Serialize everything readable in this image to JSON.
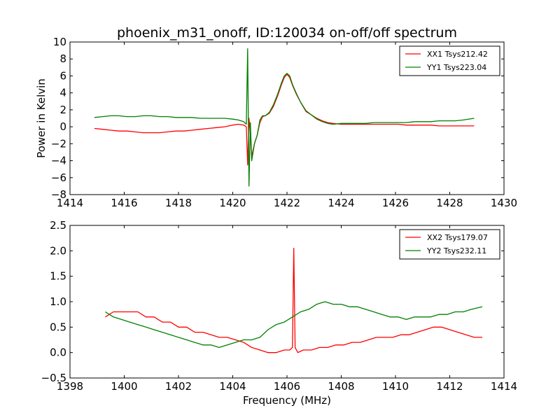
{
  "figure": {
    "title": "phoenix_m31_onoff, ID:120034 on-off/off spectrum",
    "xlabel": "Frequency (MHz)",
    "ylabel": "Power in Kelvin"
  },
  "chart_data": [
    {
      "type": "line",
      "title": "phoenix_m31_onoff, ID:120034 on-off/off spectrum",
      "xlabel": "",
      "ylabel": "Power in Kelvin",
      "xlim": [
        1414,
        1430
      ],
      "ylim": [
        -8,
        10
      ],
      "xticks": [
        1414,
        1416,
        1418,
        1420,
        1422,
        1424,
        1426,
        1428,
        1430
      ],
      "yticks": [
        -8,
        -6,
        -4,
        -2,
        0,
        2,
        4,
        6,
        8,
        10
      ],
      "xtick_labels": [
        "1414",
        "1416",
        "1418",
        "1420",
        "1422",
        "1424",
        "1426",
        "1428",
        "1430"
      ],
      "ytick_labels": [
        "−8",
        "−6",
        "−4",
        "−2",
        "0",
        "2",
        "4",
        "6",
        "8",
        "10"
      ],
      "legend": "top-right",
      "series": [
        {
          "name": "XX1 Tsys212.42",
          "color": "#ff0000",
          "x": [
            1414.9,
            1415.2,
            1415.5,
            1415.8,
            1416.1,
            1416.4,
            1416.7,
            1417.0,
            1417.3,
            1417.6,
            1417.9,
            1418.2,
            1418.5,
            1418.8,
            1419.1,
            1419.4,
            1419.7,
            1420.0,
            1420.2,
            1420.4,
            1420.5,
            1420.55,
            1420.6,
            1420.65,
            1420.7,
            1420.8,
            1420.9,
            1421.0,
            1421.1,
            1421.2,
            1421.35,
            1421.5,
            1421.65,
            1421.8,
            1421.9,
            1422.0,
            1422.1,
            1422.2,
            1422.35,
            1422.5,
            1422.7,
            1422.9,
            1423.1,
            1423.3,
            1423.5,
            1423.7,
            1424.0,
            1424.3,
            1424.6,
            1424.9,
            1425.2,
            1425.5,
            1425.8,
            1426.1,
            1426.4,
            1426.7,
            1427.0,
            1427.3,
            1427.6,
            1427.9,
            1428.2,
            1428.5,
            1428.9
          ],
          "y": [
            -0.2,
            -0.3,
            -0.4,
            -0.5,
            -0.5,
            -0.6,
            -0.7,
            -0.7,
            -0.7,
            -0.6,
            -0.5,
            -0.5,
            -0.4,
            -0.3,
            -0.2,
            -0.1,
            0.0,
            0.2,
            0.3,
            0.2,
            0.0,
            -4.5,
            1.0,
            -1.0,
            -3.5,
            -2.0,
            -1.0,
            0.5,
            1.2,
            1.3,
            1.6,
            2.4,
            3.6,
            5.0,
            5.8,
            6.2,
            5.8,
            4.9,
            3.8,
            2.9,
            1.8,
            1.4,
            1.0,
            0.7,
            0.5,
            0.4,
            0.3,
            0.3,
            0.3,
            0.3,
            0.3,
            0.3,
            0.3,
            0.3,
            0.2,
            0.2,
            0.2,
            0.2,
            0.1,
            0.1,
            0.1,
            0.1,
            0.1
          ]
        },
        {
          "name": "YY1 Tsys223.04",
          "color": "#008000",
          "x": [
            1414.9,
            1415.2,
            1415.5,
            1415.8,
            1416.1,
            1416.4,
            1416.7,
            1417.0,
            1417.3,
            1417.6,
            1417.9,
            1418.2,
            1418.5,
            1418.8,
            1419.1,
            1419.4,
            1419.7,
            1420.0,
            1420.2,
            1420.4,
            1420.5,
            1420.55,
            1420.6,
            1420.65,
            1420.7,
            1420.8,
            1420.9,
            1421.0,
            1421.1,
            1421.2,
            1421.35,
            1421.5,
            1421.65,
            1421.8,
            1421.9,
            1422.0,
            1422.1,
            1422.2,
            1422.35,
            1422.5,
            1422.7,
            1422.9,
            1423.1,
            1423.3,
            1423.5,
            1423.7,
            1424.0,
            1424.3,
            1424.6,
            1424.9,
            1425.2,
            1425.5,
            1425.8,
            1426.1,
            1426.4,
            1426.7,
            1427.0,
            1427.3,
            1427.6,
            1427.9,
            1428.2,
            1428.5,
            1428.9
          ],
          "y": [
            1.1,
            1.2,
            1.3,
            1.3,
            1.2,
            1.2,
            1.3,
            1.3,
            1.2,
            1.2,
            1.1,
            1.1,
            1.1,
            1.0,
            1.0,
            1.0,
            1.0,
            0.9,
            0.8,
            0.6,
            0.3,
            9.2,
            -7.0,
            0.5,
            -4.0,
            -2.0,
            -1.0,
            0.8,
            1.3,
            1.3,
            1.7,
            2.6,
            3.8,
            5.2,
            6.0,
            6.3,
            6.0,
            5.0,
            3.9,
            2.9,
            1.9,
            1.4,
            0.9,
            0.6,
            0.4,
            0.3,
            0.4,
            0.4,
            0.4,
            0.4,
            0.5,
            0.5,
            0.5,
            0.5,
            0.5,
            0.6,
            0.6,
            0.6,
            0.7,
            0.7,
            0.7,
            0.8,
            1.0
          ]
        }
      ]
    },
    {
      "type": "line",
      "title": "",
      "xlabel": "Frequency (MHz)",
      "ylabel": "",
      "xlim": [
        1398,
        1414
      ],
      "ylim": [
        -0.5,
        2.5
      ],
      "xticks": [
        1398,
        1400,
        1402,
        1404,
        1406,
        1408,
        1410,
        1412,
        1414
      ],
      "yticks": [
        -0.5,
        0.0,
        0.5,
        1.0,
        1.5,
        2.0,
        2.5
      ],
      "xtick_labels": [
        "1398",
        "1400",
        "1402",
        "1404",
        "1406",
        "1408",
        "1410",
        "1412",
        "1414"
      ],
      "ytick_labels": [
        "−0.5",
        "0.0",
        "0.5",
        "1.0",
        "1.5",
        "2.0",
        "2.5"
      ],
      "legend": "top-right",
      "series": [
        {
          "name": "XX2 Tsys179.07",
          "color": "#ff0000",
          "x": [
            1399.3,
            1399.6,
            1399.9,
            1400.2,
            1400.5,
            1400.8,
            1401.1,
            1401.4,
            1401.7,
            1402.0,
            1402.3,
            1402.6,
            1402.9,
            1403.2,
            1403.5,
            1403.8,
            1404.1,
            1404.4,
            1404.7,
            1405.0,
            1405.3,
            1405.6,
            1405.9,
            1406.1,
            1406.2,
            1406.25,
            1406.3,
            1406.4,
            1406.6,
            1406.9,
            1407.2,
            1407.5,
            1407.8,
            1408.1,
            1408.4,
            1408.7,
            1409.0,
            1409.3,
            1409.6,
            1409.9,
            1410.2,
            1410.5,
            1410.8,
            1411.1,
            1411.4,
            1411.7,
            1412.0,
            1412.3,
            1412.6,
            1412.9,
            1413.2
          ],
          "y": [
            0.7,
            0.8,
            0.8,
            0.8,
            0.8,
            0.7,
            0.7,
            0.6,
            0.6,
            0.5,
            0.5,
            0.4,
            0.4,
            0.35,
            0.3,
            0.3,
            0.25,
            0.2,
            0.1,
            0.05,
            0.0,
            0.0,
            0.05,
            0.05,
            0.1,
            2.05,
            0.1,
            0.0,
            0.05,
            0.05,
            0.1,
            0.1,
            0.15,
            0.15,
            0.2,
            0.2,
            0.25,
            0.3,
            0.3,
            0.3,
            0.35,
            0.35,
            0.4,
            0.45,
            0.5,
            0.5,
            0.45,
            0.4,
            0.35,
            0.3,
            0.3
          ]
        },
        {
          "name": "YY2 Tsys232.11",
          "color": "#008000",
          "x": [
            1399.3,
            1399.6,
            1399.9,
            1400.2,
            1400.5,
            1400.8,
            1401.1,
            1401.4,
            1401.7,
            1402.0,
            1402.3,
            1402.6,
            1402.9,
            1403.2,
            1403.5,
            1403.8,
            1404.1,
            1404.4,
            1404.7,
            1405.0,
            1405.3,
            1405.6,
            1405.9,
            1406.2,
            1406.5,
            1406.8,
            1407.1,
            1407.4,
            1407.7,
            1408.0,
            1408.3,
            1408.6,
            1408.9,
            1409.2,
            1409.5,
            1409.8,
            1410.1,
            1410.4,
            1410.7,
            1411.0,
            1411.3,
            1411.6,
            1411.9,
            1412.2,
            1412.5,
            1412.8,
            1413.2
          ],
          "y": [
            0.8,
            0.7,
            0.65,
            0.6,
            0.55,
            0.5,
            0.45,
            0.4,
            0.35,
            0.3,
            0.25,
            0.2,
            0.15,
            0.15,
            0.1,
            0.15,
            0.2,
            0.25,
            0.25,
            0.3,
            0.45,
            0.55,
            0.6,
            0.7,
            0.8,
            0.85,
            0.95,
            1.0,
            0.95,
            0.95,
            0.9,
            0.9,
            0.85,
            0.8,
            0.75,
            0.7,
            0.7,
            0.65,
            0.7,
            0.7,
            0.7,
            0.75,
            0.75,
            0.8,
            0.8,
            0.85,
            0.9
          ]
        }
      ]
    }
  ]
}
